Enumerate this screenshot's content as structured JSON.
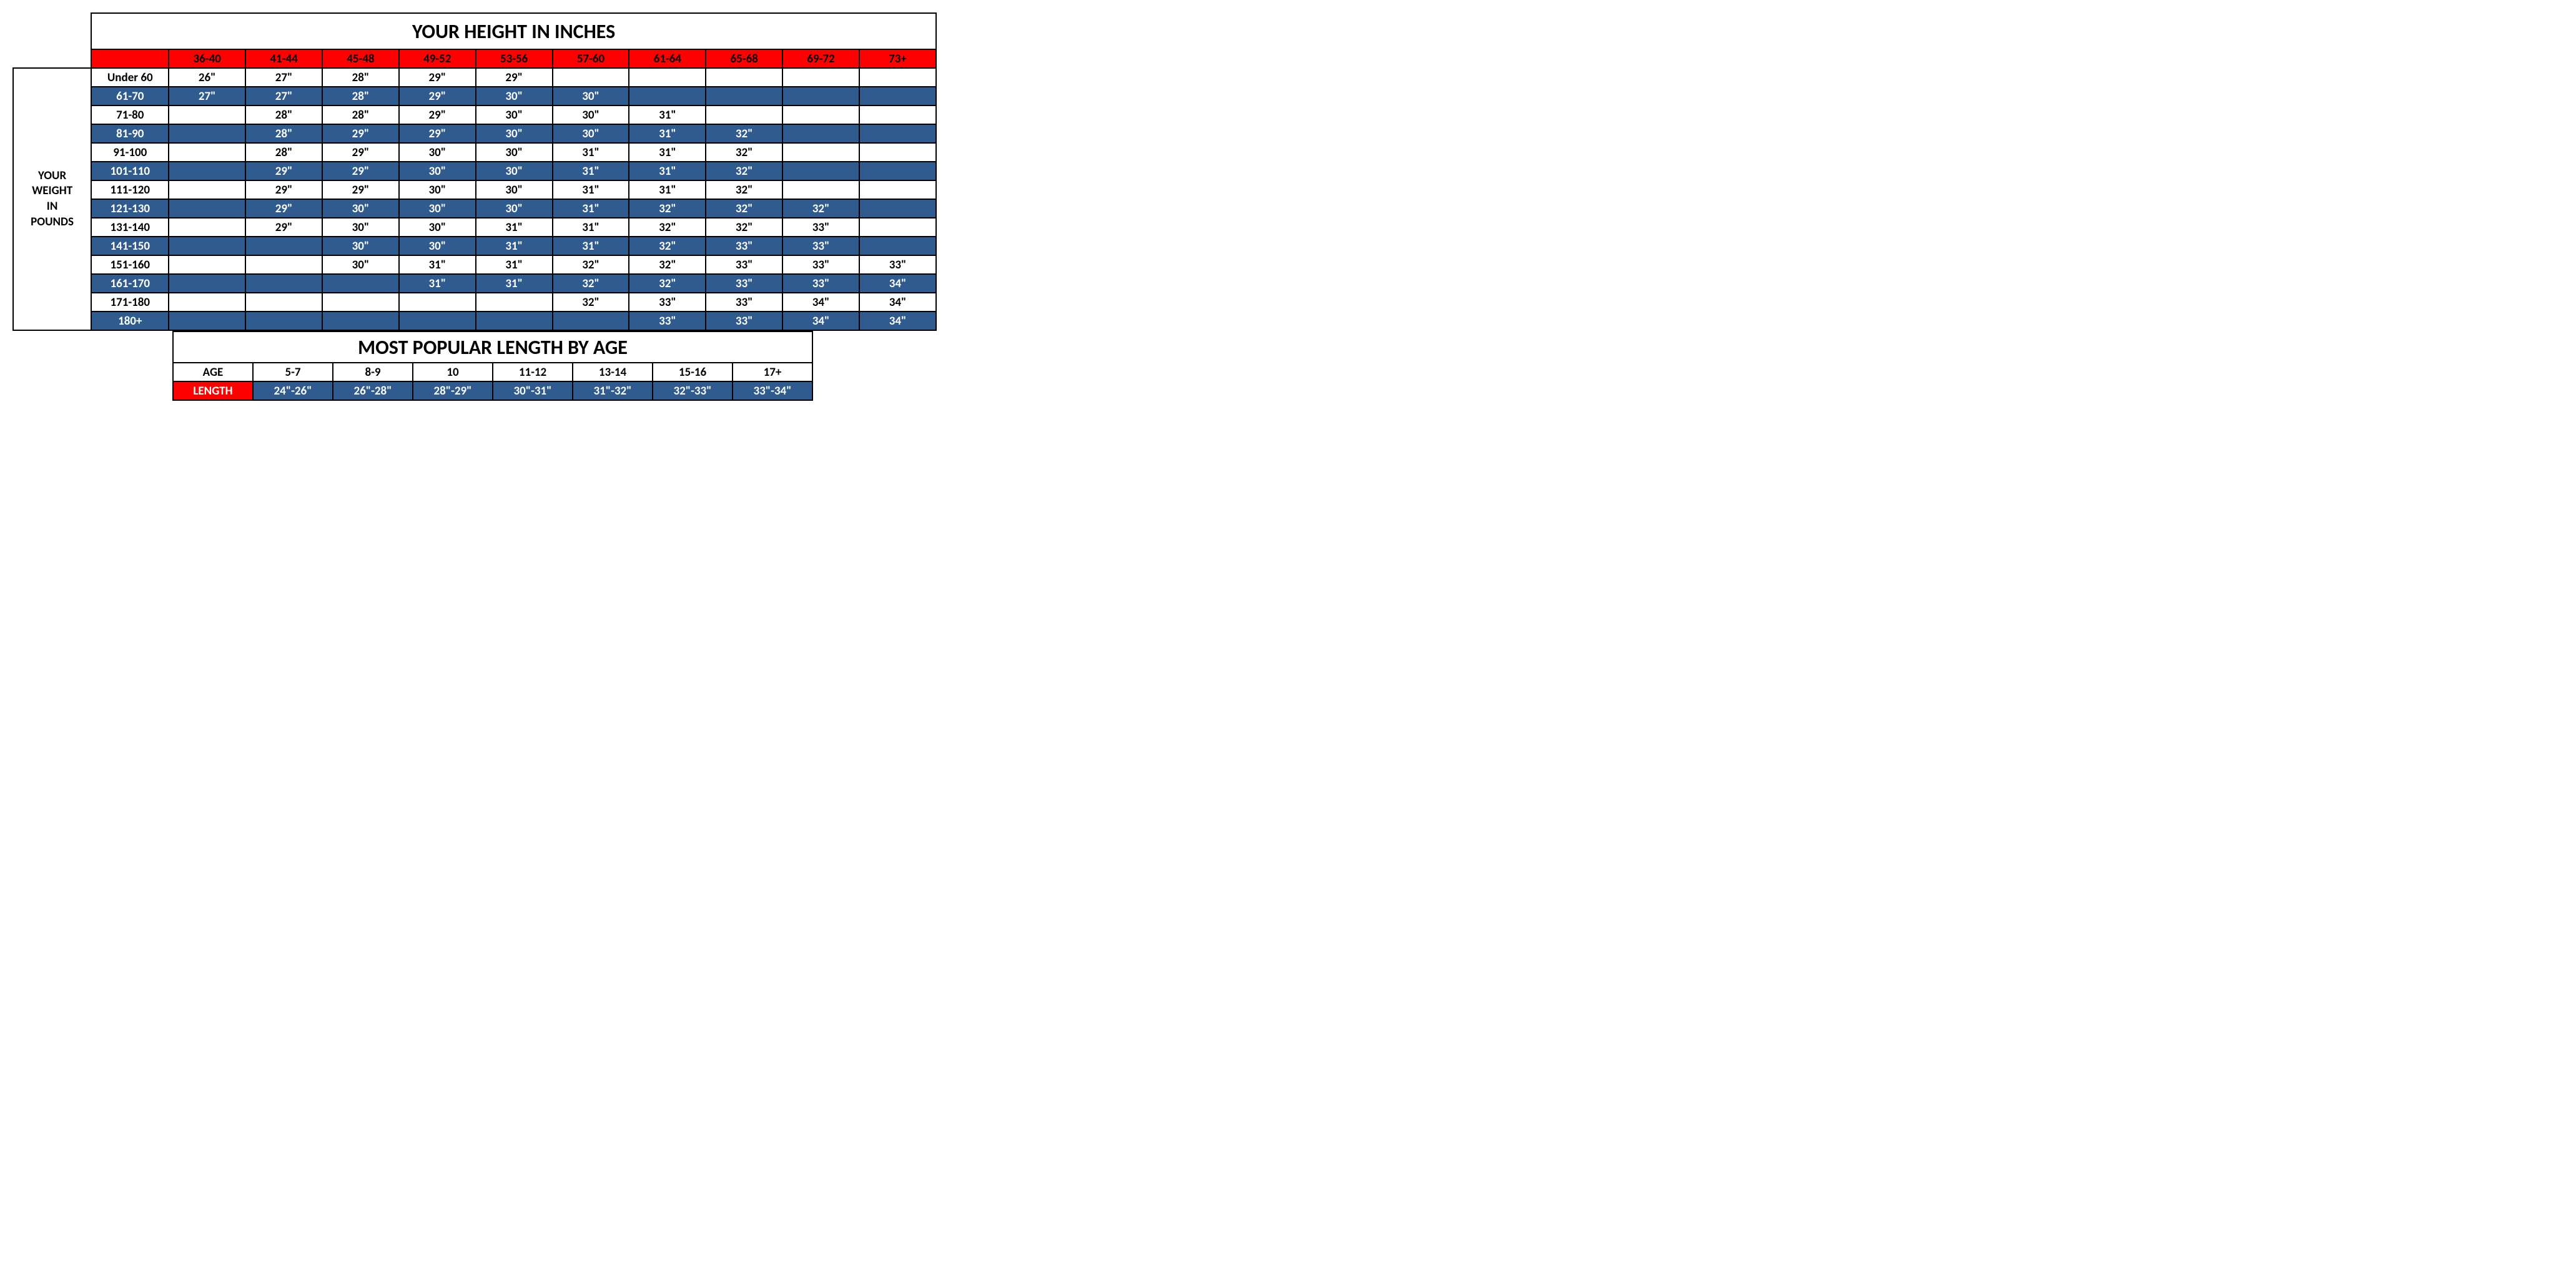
{
  "main": {
    "title": "YOUR HEIGHT IN INCHES",
    "side_label_lines": [
      "YOUR",
      "WEIGHT",
      "IN",
      "POUNDS"
    ],
    "height_headers": [
      "36-40",
      "41-44",
      "45-48",
      "49-52",
      "53-56",
      "57-60",
      "61-64",
      "65-68",
      "69-72",
      "73+"
    ],
    "weight_rows": [
      {
        "label": "Under 60",
        "cells": [
          "26\"",
          "27\"",
          "28\"",
          "29\"",
          "29\"",
          "",
          "",
          "",
          "",
          ""
        ]
      },
      {
        "label": "61-70",
        "cells": [
          "27\"",
          "27\"",
          "28\"",
          "29\"",
          "30\"",
          "30\"",
          "",
          "",
          "",
          ""
        ]
      },
      {
        "label": "71-80",
        "cells": [
          "",
          "28\"",
          "28\"",
          "29\"",
          "30\"",
          "30\"",
          "31\"",
          "",
          "",
          ""
        ]
      },
      {
        "label": "81-90",
        "cells": [
          "",
          "28\"",
          "29\"",
          "29\"",
          "30\"",
          "30\"",
          "31\"",
          "32\"",
          "",
          ""
        ]
      },
      {
        "label": "91-100",
        "cells": [
          "",
          "28\"",
          "29\"",
          "30\"",
          "30\"",
          "31\"",
          "31\"",
          "32\"",
          "",
          ""
        ]
      },
      {
        "label": "101-110",
        "cells": [
          "",
          "29\"",
          "29\"",
          "30\"",
          "30\"",
          "31\"",
          "31\"",
          "32\"",
          "",
          ""
        ]
      },
      {
        "label": "111-120",
        "cells": [
          "",
          "29\"",
          "29\"",
          "30\"",
          "30\"",
          "31\"",
          "31\"",
          "32\"",
          "",
          ""
        ]
      },
      {
        "label": "121-130",
        "cells": [
          "",
          "29\"",
          "30\"",
          "30\"",
          "30\"",
          "31\"",
          "32\"",
          "32\"",
          "32\"",
          ""
        ]
      },
      {
        "label": "131-140",
        "cells": [
          "",
          "29\"",
          "30\"",
          "30\"",
          "31\"",
          "31\"",
          "32\"",
          "32\"",
          "33\"",
          ""
        ]
      },
      {
        "label": "141-150",
        "cells": [
          "",
          "",
          "30\"",
          "30\"",
          "31\"",
          "31\"",
          "32\"",
          "33\"",
          "33\"",
          ""
        ]
      },
      {
        "label": "151-160",
        "cells": [
          "",
          "",
          "30\"",
          "31\"",
          "31\"",
          "32\"",
          "32\"",
          "33\"",
          "33\"",
          "33\""
        ]
      },
      {
        "label": "161-170",
        "cells": [
          "",
          "",
          "",
          "31\"",
          "31\"",
          "32\"",
          "32\"",
          "33\"",
          "33\"",
          "34\""
        ]
      },
      {
        "label": "171-180",
        "cells": [
          "",
          "",
          "",
          "",
          "",
          "32\"",
          "33\"",
          "33\"",
          "34\"",
          "34\""
        ]
      },
      {
        "label": "180+",
        "cells": [
          "",
          "",
          "",
          "",
          "",
          "",
          "33\"",
          "33\"",
          "34\"",
          "34\""
        ]
      }
    ],
    "colors": {
      "header_bg": "#ff0000",
      "header_fg": "#000000",
      "row_alt_bg": "#2f5b8f",
      "row_alt_fg": "#ffffff",
      "row_bg": "#ffffff",
      "row_fg": "#000000",
      "border": "#000000"
    }
  },
  "age": {
    "title": "MOST POPULAR LENGTH BY AGE",
    "age_label": "AGE",
    "length_label": "LENGTH",
    "ages": [
      "5-7",
      "8-9",
      "10",
      "11-12",
      "13-14",
      "15-16",
      "17+"
    ],
    "lengths": [
      "24\"-26\"",
      "26\"-28\"",
      "28\"-29\"",
      "30\"-31\"",
      "31\"-32\"",
      "32\"-33\"",
      "33\"-34\""
    ],
    "colors": {
      "label_bg": "#ff0000",
      "label_fg": "#ffffff",
      "age_row_bg": "#ffffff",
      "age_row_fg": "#000000",
      "length_row_bg": "#2f5b8f",
      "length_row_fg": "#ffffff"
    }
  }
}
